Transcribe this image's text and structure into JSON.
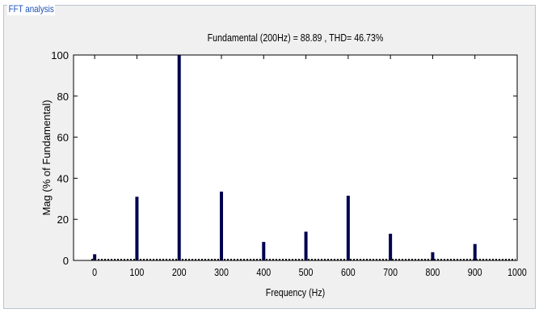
{
  "panel": {
    "title": "FFT analysis"
  },
  "chart_data": {
    "type": "bar",
    "title": "Fundamental (200Hz) = 88.89 , THD= 46.73%",
    "xlabel": "Frequency (Hz)",
    "ylabel": "Mag (% of Fundamental)",
    "xlim": [
      -50,
      1000
    ],
    "ylim": [
      0,
      100
    ],
    "xticks": [
      0,
      100,
      200,
      300,
      400,
      500,
      600,
      700,
      800,
      900,
      1000
    ],
    "yticks": [
      0,
      20,
      40,
      60,
      80,
      100
    ],
    "grid": false,
    "bar_color": "#000050",
    "bars": [
      {
        "x": 0,
        "y": 3
      },
      {
        "x": 100,
        "y": 31
      },
      {
        "x": 200,
        "y": 100
      },
      {
        "x": 300,
        "y": 33.5
      },
      {
        "x": 400,
        "y": 9
      },
      {
        "x": 500,
        "y": 14
      },
      {
        "x": 600,
        "y": 31.5
      },
      {
        "x": 700,
        "y": 13
      },
      {
        "x": 800,
        "y": 4
      },
      {
        "x": 900,
        "y": 8
      }
    ]
  }
}
